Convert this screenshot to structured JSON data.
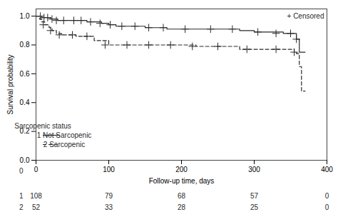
{
  "chart_data": {
    "type": "step",
    "xlabel": "Follow-up time, days",
    "ylabel": "Survival probability",
    "xlim": [
      0,
      400
    ],
    "ylim": [
      0,
      1.05
    ],
    "xticks": [
      0,
      100,
      200,
      300,
      400
    ],
    "yticks": [
      {
        "value": 0,
        "label": "0.0"
      },
      0.2,
      0.4,
      0.6,
      0.8,
      {
        "value": 1,
        "label": "1.0"
      }
    ],
    "legend": "lower left",
    "legend_title": "Sarcopenic status",
    "series": [
      {
        "name": "1 Not Sarcopenic",
        "color": "#2a2a2a",
        "line_style": "solid",
        "marker": "plus",
        "x": [
          0,
          5,
          8,
          10,
          12,
          15,
          18,
          20,
          25,
          30,
          35,
          40,
          45,
          50,
          55,
          60,
          70,
          80,
          90,
          100,
          110,
          120,
          130,
          140,
          150,
          160,
          170,
          180,
          200,
          220,
          240,
          260,
          280,
          300,
          320,
          340,
          355,
          358,
          362,
          365,
          370
        ],
        "values": [
          1.0,
          1.0,
          0.99,
          0.99,
          0.99,
          0.99,
          0.99,
          0.98,
          0.98,
          0.97,
          0.97,
          0.97,
          0.97,
          0.97,
          0.97,
          0.97,
          0.96,
          0.96,
          0.95,
          0.94,
          0.93,
          0.93,
          0.93,
          0.93,
          0.92,
          0.92,
          0.92,
          0.91,
          0.91,
          0.91,
          0.91,
          0.91,
          0.9,
          0.89,
          0.89,
          0.88,
          0.88,
          0.84,
          0.75,
          0.75,
          0.75
        ],
        "censored_x": [
          6,
          11,
          16,
          22,
          28,
          38,
          52,
          62,
          75,
          88,
          102,
          118,
          136,
          155,
          175,
          205,
          240,
          270,
          305,
          330,
          350,
          358
        ],
        "censored_values": [
          1.0,
          0.99,
          0.99,
          0.98,
          0.97,
          0.97,
          0.97,
          0.97,
          0.96,
          0.95,
          0.94,
          0.93,
          0.93,
          0.92,
          0.92,
          0.91,
          0.91,
          0.91,
          0.89,
          0.88,
          0.88,
          0.84
        ]
      },
      {
        "name": "2 Sarcopenic",
        "color": "#2a2a2a",
        "line_style": "dashed",
        "marker": "plus",
        "x": [
          0,
          5,
          8,
          12,
          18,
          22,
          28,
          35,
          45,
          55,
          65,
          80,
          100,
          130,
          160,
          190,
          220,
          250,
          280,
          310,
          340,
          355,
          358,
          362,
          365,
          370
        ],
        "values": [
          1.0,
          0.98,
          0.96,
          0.94,
          0.92,
          0.9,
          0.88,
          0.87,
          0.87,
          0.86,
          0.86,
          0.83,
          0.8,
          0.8,
          0.8,
          0.8,
          0.79,
          0.79,
          0.77,
          0.77,
          0.77,
          0.75,
          0.74,
          0.65,
          0.48,
          0.48
        ],
        "censored_x": [
          10,
          20,
          32,
          50,
          70,
          95,
          125,
          155,
          185,
          215,
          250,
          290,
          330,
          355
        ],
        "censored_values": [
          0.94,
          0.9,
          0.87,
          0.87,
          0.86,
          0.8,
          0.8,
          0.8,
          0.8,
          0.79,
          0.79,
          0.77,
          0.77,
          0.75
        ]
      }
    ],
    "annotations": [
      {
        "text": "+ Censored"
      }
    ],
    "risk_table": {
      "label": "0",
      "x": [
        0,
        100,
        200,
        300,
        400
      ],
      "rows": [
        {
          "name": "1",
          "values": [
            108,
            79,
            68,
            57,
            0
          ]
        },
        {
          "name": "2",
          "values": [
            52,
            33,
            28,
            25,
            0
          ]
        }
      ]
    }
  }
}
